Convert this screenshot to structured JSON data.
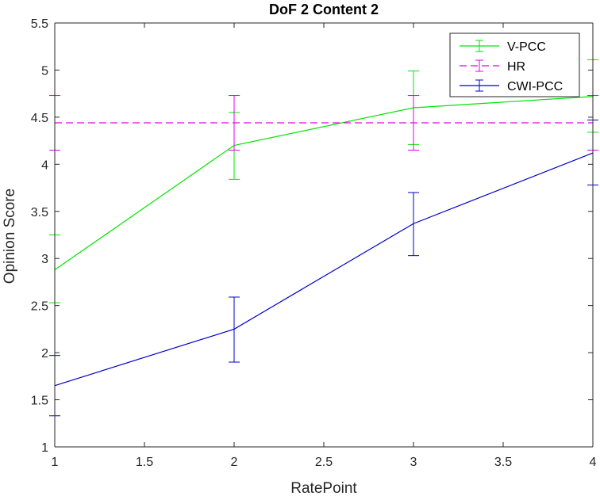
{
  "chart_data": {
    "type": "line",
    "title": "DoF 2 Content 2",
    "xlabel": "RatePoint",
    "ylabel": "Opinion Score",
    "xlim": [
      1,
      4
    ],
    "ylim": [
      1,
      5.5
    ],
    "xticks": [
      "1",
      "1.5",
      "2",
      "2.5",
      "3",
      "3.5",
      "4"
    ],
    "yticks": [
      "1",
      "1.5",
      "2",
      "2.5",
      "3",
      "3.5",
      "4",
      "4.5",
      "5",
      "5.5"
    ],
    "grid": false,
    "legend_position": "top-right",
    "x": [
      1,
      2,
      3,
      4
    ],
    "series": [
      {
        "name": "V-PCC",
        "color": "#00e600",
        "dash": "solid",
        "values": [
          2.88,
          4.2,
          4.6,
          4.72
        ],
        "err_low": [
          2.53,
          3.84,
          4.21,
          4.34
        ],
        "err_high": [
          3.25,
          4.55,
          4.99,
          5.11
        ]
      },
      {
        "name": "HR",
        "color": "#e600e6",
        "dash": "dashed",
        "values": [
          4.44,
          4.44,
          4.44,
          4.44
        ],
        "err_low": [
          4.15,
          4.15,
          4.15,
          4.15
        ],
        "err_high": [
          4.73,
          4.73,
          4.73,
          4.73
        ]
      },
      {
        "name": "CWI-PCC",
        "color": "#0000cc",
        "dash": "solid",
        "values": [
          1.65,
          2.25,
          3.37,
          4.12
        ],
        "err_low": [
          1.33,
          1.9,
          3.03,
          3.78
        ],
        "err_high": [
          1.97,
          2.59,
          3.7,
          4.47
        ]
      }
    ]
  }
}
